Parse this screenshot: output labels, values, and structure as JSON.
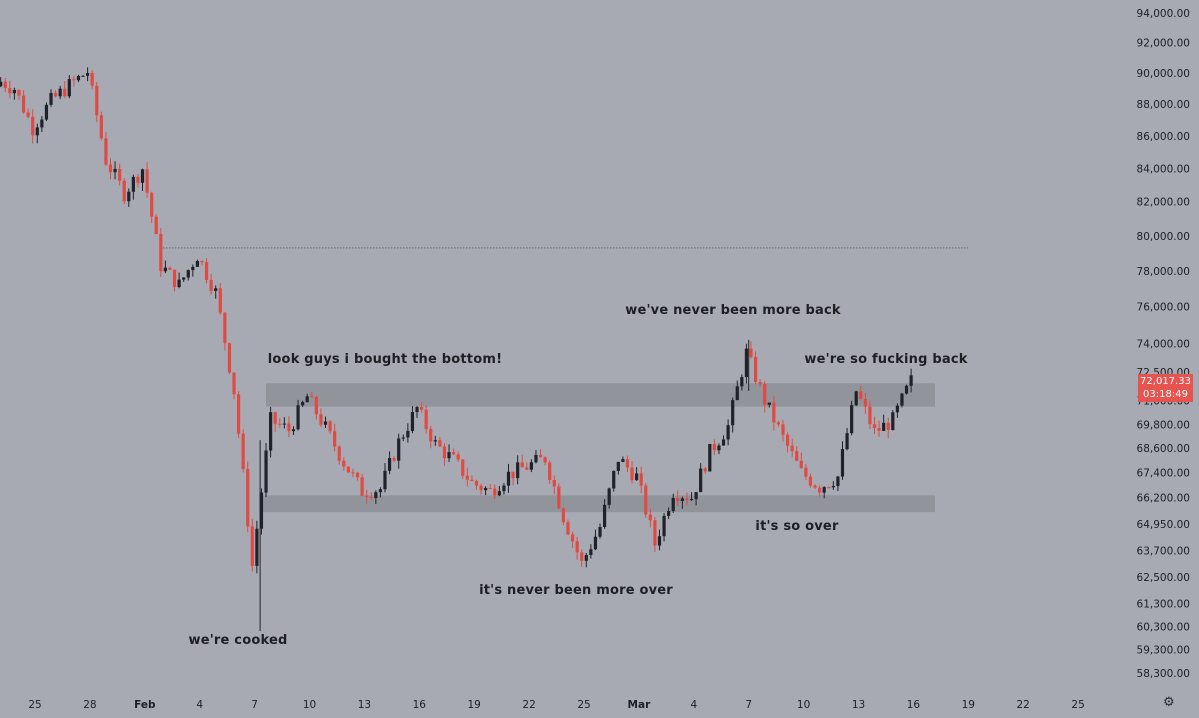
{
  "colors": {
    "background": "#a7aab2",
    "up": "#1f2228",
    "down": "#e14a43",
    "zone": "#8d9097",
    "hline": "#5a5d63",
    "tag": "#e7534e"
  },
  "annotations": {
    "cooked": "we're cooked",
    "bought_bottom": "look guys i bought the bottom!",
    "never_more_over": "it's never been more over",
    "never_more_back": "we've never been more back",
    "so_over": "it's so over",
    "so_back": "we're so fucking back"
  },
  "price_tag": {
    "price": "72,017.33",
    "timer": "03:18:49"
  },
  "settings_icon": "gear-icon",
  "chart_data": {
    "type": "candlestick",
    "y_axis": {
      "ticks": [
        "94,000.00",
        "92,000.00",
        "90,000.00",
        "88,000.00",
        "86,000.00",
        "84,000.00",
        "82,000.00",
        "80,000.00",
        "78,000.00",
        "76,000.00",
        "74,000.00",
        "72,500.00",
        "71,000.00",
        "69,800.00",
        "68,600.00",
        "67,400.00",
        "66,200.00",
        "64,950.00",
        "63,700.00",
        "62,500.00",
        "61,300.00",
        "60,300.00",
        "59,300.00",
        "58,300.00"
      ],
      "scale": "log"
    },
    "x_axis": {
      "ticks": [
        "25",
        "28",
        "Feb",
        "4",
        "7",
        "10",
        "13",
        "16",
        "19",
        "22",
        "25",
        "Mar",
        "4",
        "7",
        "10",
        "13",
        "16",
        "19",
        "22",
        "25"
      ]
    },
    "horizontal_line": 79300,
    "zones": [
      {
        "low": 70700,
        "high": 71900
      },
      {
        "low": 65500,
        "high": 66300
      }
    ],
    "last_price": 72017.33,
    "series_close_points": [
      {
        "date": "Jan 23",
        "price": 89600
      },
      {
        "date": "Jan 24",
        "price": 89000
      },
      {
        "date": "Jan 25",
        "price": 86500
      },
      {
        "date": "Jan 26",
        "price": 88200
      },
      {
        "date": "Jan 27",
        "price": 89200
      },
      {
        "date": "Jan 28",
        "price": 90100
      },
      {
        "date": "Jan 29",
        "price": 84500
      },
      {
        "date": "Jan 30",
        "price": 82500
      },
      {
        "date": "Jan 31",
        "price": 84000
      },
      {
        "date": "Feb 1",
        "price": 78300
      },
      {
        "date": "Feb 2",
        "price": 77200
      },
      {
        "date": "Feb 3",
        "price": 78900
      },
      {
        "date": "Feb 4",
        "price": 76800
      },
      {
        "date": "Feb 5",
        "price": 71500
      },
      {
        "date": "Feb 6",
        "price": 63000
      },
      {
        "date": "Feb 7",
        "price": 70000
      },
      {
        "date": "Feb 8",
        "price": 69500
      },
      {
        "date": "Feb 9",
        "price": 71200
      },
      {
        "date": "Feb 10",
        "price": 69600
      },
      {
        "date": "Feb 11",
        "price": 67900
      },
      {
        "date": "Feb 12",
        "price": 66500
      },
      {
        "date": "Feb 13",
        "price": 66600
      },
      {
        "date": "Feb 14",
        "price": 68900
      },
      {
        "date": "Feb 15",
        "price": 70600
      },
      {
        "date": "Feb 16",
        "price": 68800
      },
      {
        "date": "Feb 17",
        "price": 68000
      },
      {
        "date": "Feb 18",
        "price": 66900
      },
      {
        "date": "Feb 19",
        "price": 66500
      },
      {
        "date": "Feb 20",
        "price": 67300
      },
      {
        "date": "Feb 21",
        "price": 67700
      },
      {
        "date": "Feb 22",
        "price": 68100
      },
      {
        "date": "Feb 23",
        "price": 65300
      },
      {
        "date": "Feb 24",
        "price": 63100
      },
      {
        "date": "Feb 25",
        "price": 64800
      },
      {
        "date": "Feb 26",
        "price": 68100
      },
      {
        "date": "Feb 27",
        "price": 67200
      },
      {
        "date": "Feb 28",
        "price": 64000
      },
      {
        "date": "Mar 1",
        "price": 66500
      },
      {
        "date": "Mar 2",
        "price": 66200
      },
      {
        "date": "Mar 3",
        "price": 68400
      },
      {
        "date": "Mar 4",
        "price": 69700
      },
      {
        "date": "Mar 5",
        "price": 73500
      },
      {
        "date": "Mar 6",
        "price": 71000
      },
      {
        "date": "Mar 7",
        "price": 69100
      },
      {
        "date": "Mar 8",
        "price": 67400
      },
      {
        "date": "Mar 9",
        "price": 66700
      },
      {
        "date": "Mar 10",
        "price": 67200
      },
      {
        "date": "Mar 11",
        "price": 71500
      },
      {
        "date": "Mar 12",
        "price": 69400
      },
      {
        "date": "Mar 13",
        "price": 70000
      },
      {
        "date": "Mar 14",
        "price": 72017
      }
    ]
  }
}
